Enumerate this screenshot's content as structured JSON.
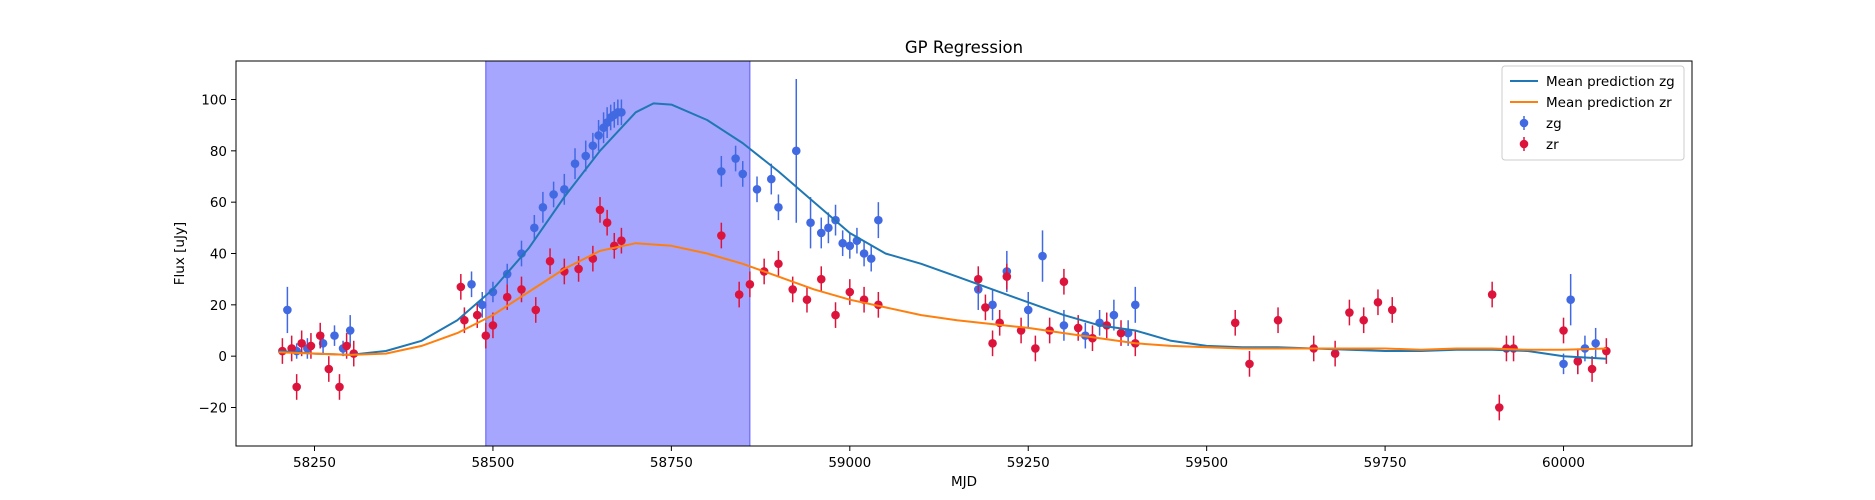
{
  "chart_data": {
    "type": "scatter",
    "title": "GP Regression",
    "xlabel": "MJD",
    "ylabel": "Flux [uJy]",
    "xlim": [
      58140,
      60180
    ],
    "ylim": [
      -35,
      115
    ],
    "xticks": [
      58250,
      58500,
      58750,
      59000,
      59250,
      59500,
      59750,
      60000
    ],
    "yticks": [
      -20,
      0,
      20,
      40,
      60,
      80,
      100
    ],
    "legend_position": "upper right",
    "grid": false,
    "shaded_region": {
      "x_start": 58490,
      "x_end": 58860,
      "color": "#a6a6ff"
    },
    "series": [
      {
        "name": "Mean prediction zg",
        "kind": "line",
        "color": "#1f77b4",
        "x": [
          58200,
          58250,
          58300,
          58350,
          58400,
          58450,
          58500,
          58550,
          58600,
          58650,
          58700,
          58725,
          58750,
          58800,
          58850,
          58900,
          58950,
          59000,
          59050,
          59100,
          59150,
          59200,
          59250,
          59300,
          59350,
          59400,
          59450,
          59500,
          59550,
          59600,
          59650,
          59700,
          59750,
          59800,
          59850,
          59900,
          59950,
          60000,
          60060
        ],
        "y": [
          2,
          1,
          0.5,
          2,
          6,
          14,
          26,
          42,
          62,
          80,
          95,
          98.5,
          98,
          92,
          83,
          72,
          60,
          48,
          40,
          36,
          31,
          26,
          21,
          16,
          12,
          10,
          6,
          4,
          3.5,
          3.5,
          3,
          2.5,
          2,
          2,
          2.5,
          2.5,
          2,
          0,
          -1
        ]
      },
      {
        "name": "Mean prediction zr",
        "kind": "line",
        "color": "#ff7f0e",
        "x": [
          58200,
          58250,
          58300,
          58350,
          58400,
          58450,
          58500,
          58550,
          58600,
          58650,
          58700,
          58750,
          58800,
          58850,
          58900,
          58950,
          59000,
          59050,
          59100,
          59150,
          59200,
          59250,
          59300,
          59350,
          59400,
          59450,
          59500,
          59550,
          59600,
          59650,
          59700,
          59750,
          59800,
          59850,
          59900,
          59950,
          60000,
          60060
        ],
        "y": [
          1.5,
          1,
          0.5,
          1,
          4,
          9,
          16,
          25,
          34,
          41,
          44,
          43,
          40,
          36,
          31,
          26,
          22,
          19,
          16,
          14,
          12.5,
          11,
          9,
          7,
          5,
          4,
          3.5,
          3,
          3,
          3,
          3,
          3,
          2.5,
          3,
          3,
          2.5,
          2.5,
          3
        ]
      },
      {
        "name": "zg",
        "kind": "errorbar",
        "color": "#4169e1",
        "x": [
          58212,
          58225,
          58240,
          58262,
          58278,
          58290,
          58300,
          58470,
          58485,
          58500,
          58520,
          58540,
          58558,
          58570,
          58585,
          58600,
          58615,
          58630,
          58640,
          58648,
          58655,
          58660,
          58665,
          58670,
          58675,
          58680,
          58820,
          58840,
          58850,
          58870,
          58890,
          58900,
          58925,
          58945,
          58960,
          58970,
          58980,
          58990,
          59000,
          59010,
          59020,
          59030,
          59040,
          59180,
          59200,
          59220,
          59250,
          59270,
          59300,
          59330,
          59350,
          59370,
          59390,
          59400,
          60000,
          60010,
          60020,
          60030,
          60045
        ],
        "y": [
          18,
          2,
          3,
          5,
          8,
          3,
          10,
          28,
          20,
          25,
          32,
          40,
          50,
          58,
          63,
          65,
          75,
          78,
          82,
          86,
          89,
          91,
          93,
          94,
          95,
          95,
          72,
          77,
          71,
          65,
          69,
          58,
          80,
          52,
          48,
          50,
          53,
          44,
          43,
          45,
          40,
          38,
          53,
          26,
          20,
          33,
          18,
          39,
          12,
          8,
          13,
          16,
          9,
          20,
          -3,
          22,
          -2,
          3,
          5
        ],
        "yerr": [
          9,
          3,
          4,
          4,
          4,
          3,
          6,
          5,
          5,
          4,
          4,
          5,
          5,
          6,
          5,
          6,
          6,
          6,
          5,
          6,
          6,
          6,
          5,
          5,
          5,
          5,
          6,
          5,
          5,
          5,
          6,
          5,
          28,
          10,
          6,
          6,
          6,
          5,
          5,
          5,
          5,
          5,
          7,
          8,
          6,
          8,
          7,
          10,
          6,
          5,
          5,
          6,
          5,
          7,
          4,
          10,
          5,
          5,
          6
        ]
      },
      {
        "name": "zr",
        "kind": "errorbar",
        "color": "#dc143c",
        "x": [
          58205,
          58218,
          58225,
          58232,
          58245,
          58258,
          58270,
          58285,
          58295,
          58305,
          58455,
          58460,
          58478,
          58490,
          58500,
          58520,
          58540,
          58560,
          58580,
          58600,
          58620,
          58640,
          58650,
          58660,
          58670,
          58680,
          58820,
          58845,
          58860,
          58880,
          58900,
          58920,
          58940,
          58960,
          58980,
          59000,
          59020,
          59040,
          59180,
          59190,
          59200,
          59210,
          59220,
          59240,
          59260,
          59280,
          59300,
          59320,
          59340,
          59360,
          59380,
          59400,
          59540,
          59560,
          59600,
          59650,
          59680,
          59700,
          59720,
          59740,
          59760,
          59900,
          59910,
          59920,
          59930,
          60000,
          60020,
          60040,
          60060
        ],
        "y": [
          2,
          3,
          -12,
          5,
          4,
          8,
          -5,
          -12,
          4,
          1,
          27,
          14,
          16,
          8,
          12,
          23,
          26,
          18,
          37,
          33,
          34,
          38,
          57,
          52,
          43,
          45,
          47,
          24,
          28,
          33,
          36,
          26,
          22,
          30,
          16,
          25,
          22,
          20,
          30,
          19,
          5,
          13,
          31,
          10,
          3,
          10,
          29,
          11,
          7,
          12,
          9,
          5,
          13,
          -3,
          14,
          3,
          1,
          17,
          14,
          21,
          18,
          24,
          -20,
          3,
          3,
          10,
          -2,
          -5,
          2
        ]
      },
      {
        "name": "zr",
        "kind": "errorbar_hidden",
        "color": "#dc143c"
      }
    ]
  },
  "legend": {
    "entries": [
      {
        "label": "Mean prediction zg",
        "symbol": "line",
        "color": "#1f77b4"
      },
      {
        "label": "Mean prediction zr",
        "symbol": "line",
        "color": "#ff7f0e"
      },
      {
        "label": "zg",
        "symbol": "errorbar",
        "color": "#4169e1"
      },
      {
        "label": "zr",
        "symbol": "errorbar",
        "color": "#dc143c"
      }
    ]
  }
}
